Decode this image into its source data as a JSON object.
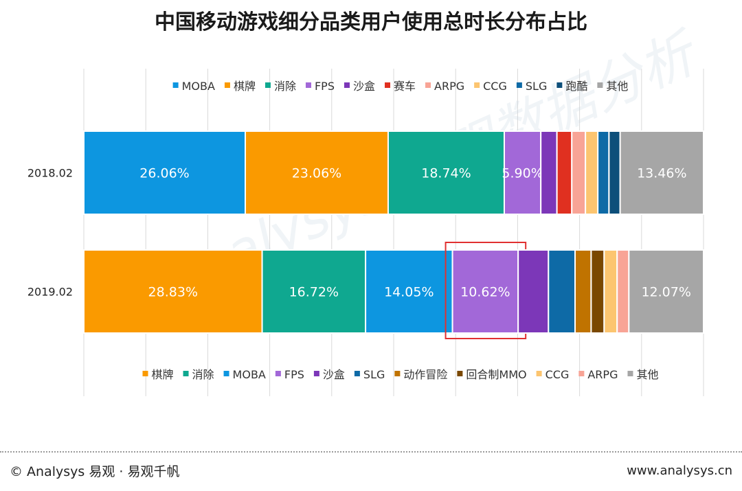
{
  "chart_data": {
    "type": "bar",
    "orientation": "horizontal",
    "stacked": true,
    "percent": true,
    "title": "中国移动游戏细分品类用户使用总时长分布占比",
    "grid": true,
    "bars": [
      {
        "category": "2018.02",
        "legend_position": "top",
        "segments": [
          {
            "name": "MOBA",
            "value": 26.06,
            "label": "26.06%",
            "color": "#0d96e0"
          },
          {
            "name": "棋牌",
            "value": 23.06,
            "label": "23.06%",
            "color": "#fa9a00"
          },
          {
            "name": "消除",
            "value": 18.74,
            "label": "18.74%",
            "color": "#0fa890"
          },
          {
            "name": "FPS",
            "value": 5.9,
            "label": "5.90%",
            "color": "#a268d8"
          },
          {
            "name": "沙盒",
            "value": 2.6,
            "label": "",
            "color": "#7c37b8"
          },
          {
            "name": "赛车",
            "value": 2.4,
            "label": "",
            "color": "#e03020"
          },
          {
            "name": "ARPG",
            "value": 2.2,
            "label": "",
            "color": "#f8a496"
          },
          {
            "name": "CCG",
            "value": 2.0,
            "label": "",
            "color": "#fcc570"
          },
          {
            "name": "SLG",
            "value": 1.8,
            "label": "",
            "color": "#0e6aa6"
          },
          {
            "name": "跑酷",
            "value": 1.8,
            "label": "",
            "color": "#0d4f7a"
          },
          {
            "name": "其他",
            "value": 13.46,
            "label": "13.46%",
            "color": "#a6a6a6"
          }
        ]
      },
      {
        "category": "2019.02",
        "legend_position": "bottom",
        "segments": [
          {
            "name": "棋牌",
            "value": 28.83,
            "label": "28.83%",
            "color": "#fa9a00"
          },
          {
            "name": "消除",
            "value": 16.72,
            "label": "16.72%",
            "color": "#0fa890"
          },
          {
            "name": "MOBA",
            "value": 14.05,
            "label": "14.05%",
            "color": "#0d96e0"
          },
          {
            "name": "FPS",
            "value": 10.62,
            "label": "10.62%",
            "color": "#a268d8",
            "highlight": true
          },
          {
            "name": "沙盒",
            "value": 4.9,
            "label": "",
            "color": "#7c37b8"
          },
          {
            "name": "SLG",
            "value": 4.3,
            "label": "",
            "color": "#0e6aa6"
          },
          {
            "name": "动作冒险",
            "value": 2.6,
            "label": "",
            "color": "#c07300"
          },
          {
            "name": "回合制MMO",
            "value": 2.1,
            "label": "",
            "color": "#7a4800"
          },
          {
            "name": "CCG",
            "value": 2.1,
            "label": "",
            "color": "#fcc570"
          },
          {
            "name": "ARPG",
            "value": 1.9,
            "label": "",
            "color": "#f8a496"
          },
          {
            "name": "其他",
            "value": 12.07,
            "label": "12.07%",
            "color": "#a6a6a6"
          }
        ]
      }
    ]
  },
  "watermark": "Analysys 易观数据分析",
  "footer": {
    "left": "© Analysys 易观 · 易观千帆",
    "right": "www.analysys.cn"
  }
}
